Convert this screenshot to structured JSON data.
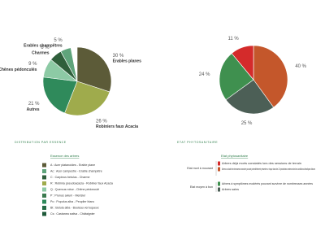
{
  "chart_data": [
    {
      "type": "pie",
      "subtitle": "DISTRIBUTION PAR ESSENCE",
      "categories": [
        "Erables planes",
        "Robiniers faux Acacia",
        "Autres",
        "Chênes pédonculés",
        "Charmes",
        "Erables champêtres"
      ],
      "values": [
        30,
        26,
        21,
        9,
        6,
        5
      ],
      "value_labels": [
        "30 %",
        "26 %",
        "21 %",
        "9 %",
        "6 %",
        "5 %"
      ],
      "colors": [
        "#5c5b38",
        "#9fab4c",
        "#2f8a5b",
        "#8dcaa5",
        "#2f5f3b",
        "#5fa47b"
      ],
      "legend_title": "Essence des arbres",
      "legend": [
        "A : Acer platanoides - Erable plane",
        "Ac : Acer campestre - Erable champêtre",
        "C : Carpinus betulus - Charme",
        "R : Robinia pseudoacacia - Robinier faux Acacia",
        "Q : Quercus robur - Chêne pédonculé",
        "P : Prunus avium - Merisier",
        "Po : Populus alba - Peuplier blanc",
        "Bt : Betula alba - Bouleau verruqueux",
        "Cs : Castanea sativa - Châtaignier"
      ],
      "legend_colors": [
        "#5c5b38",
        "#5fa47b",
        "#2f5f3b",
        "#9fab4c",
        "#8dcaa5",
        "#3b7a4e",
        "#2f8a5b",
        "#256b45",
        "#1f5a3a"
      ]
    },
    {
      "type": "pie",
      "subtitle": "ETAT PHYTOSANITAIRE",
      "values": [
        40,
        25,
        24,
        11
      ],
      "value_labels": [
        "40 %",
        "25 %",
        "24 %",
        "11 %"
      ],
      "colors": [
        "#c4572b",
        "#4c5f56",
        "#3f904f",
        "#d42b2b"
      ],
      "legend_title": "Etat phytosanitaire",
      "groups": [
        "Etat mort à mourant",
        "Etat moyen à bon"
      ],
      "legend": [
        "Arbres déjà morts constatés lors des sessions de terrain",
        "Arbres au stade de sénescence avancée pouvant potentiellement présenter un risque dans les 10 prochaines années selon les conditions climatiques futures",
        "Arbres à symptômes modérés pouvant survivre de nombreuses années",
        "Arbres sains"
      ],
      "legend_colors": [
        "#d42b2b",
        "#c4572b",
        "#3f904f",
        "#4c5f56"
      ]
    }
  ]
}
